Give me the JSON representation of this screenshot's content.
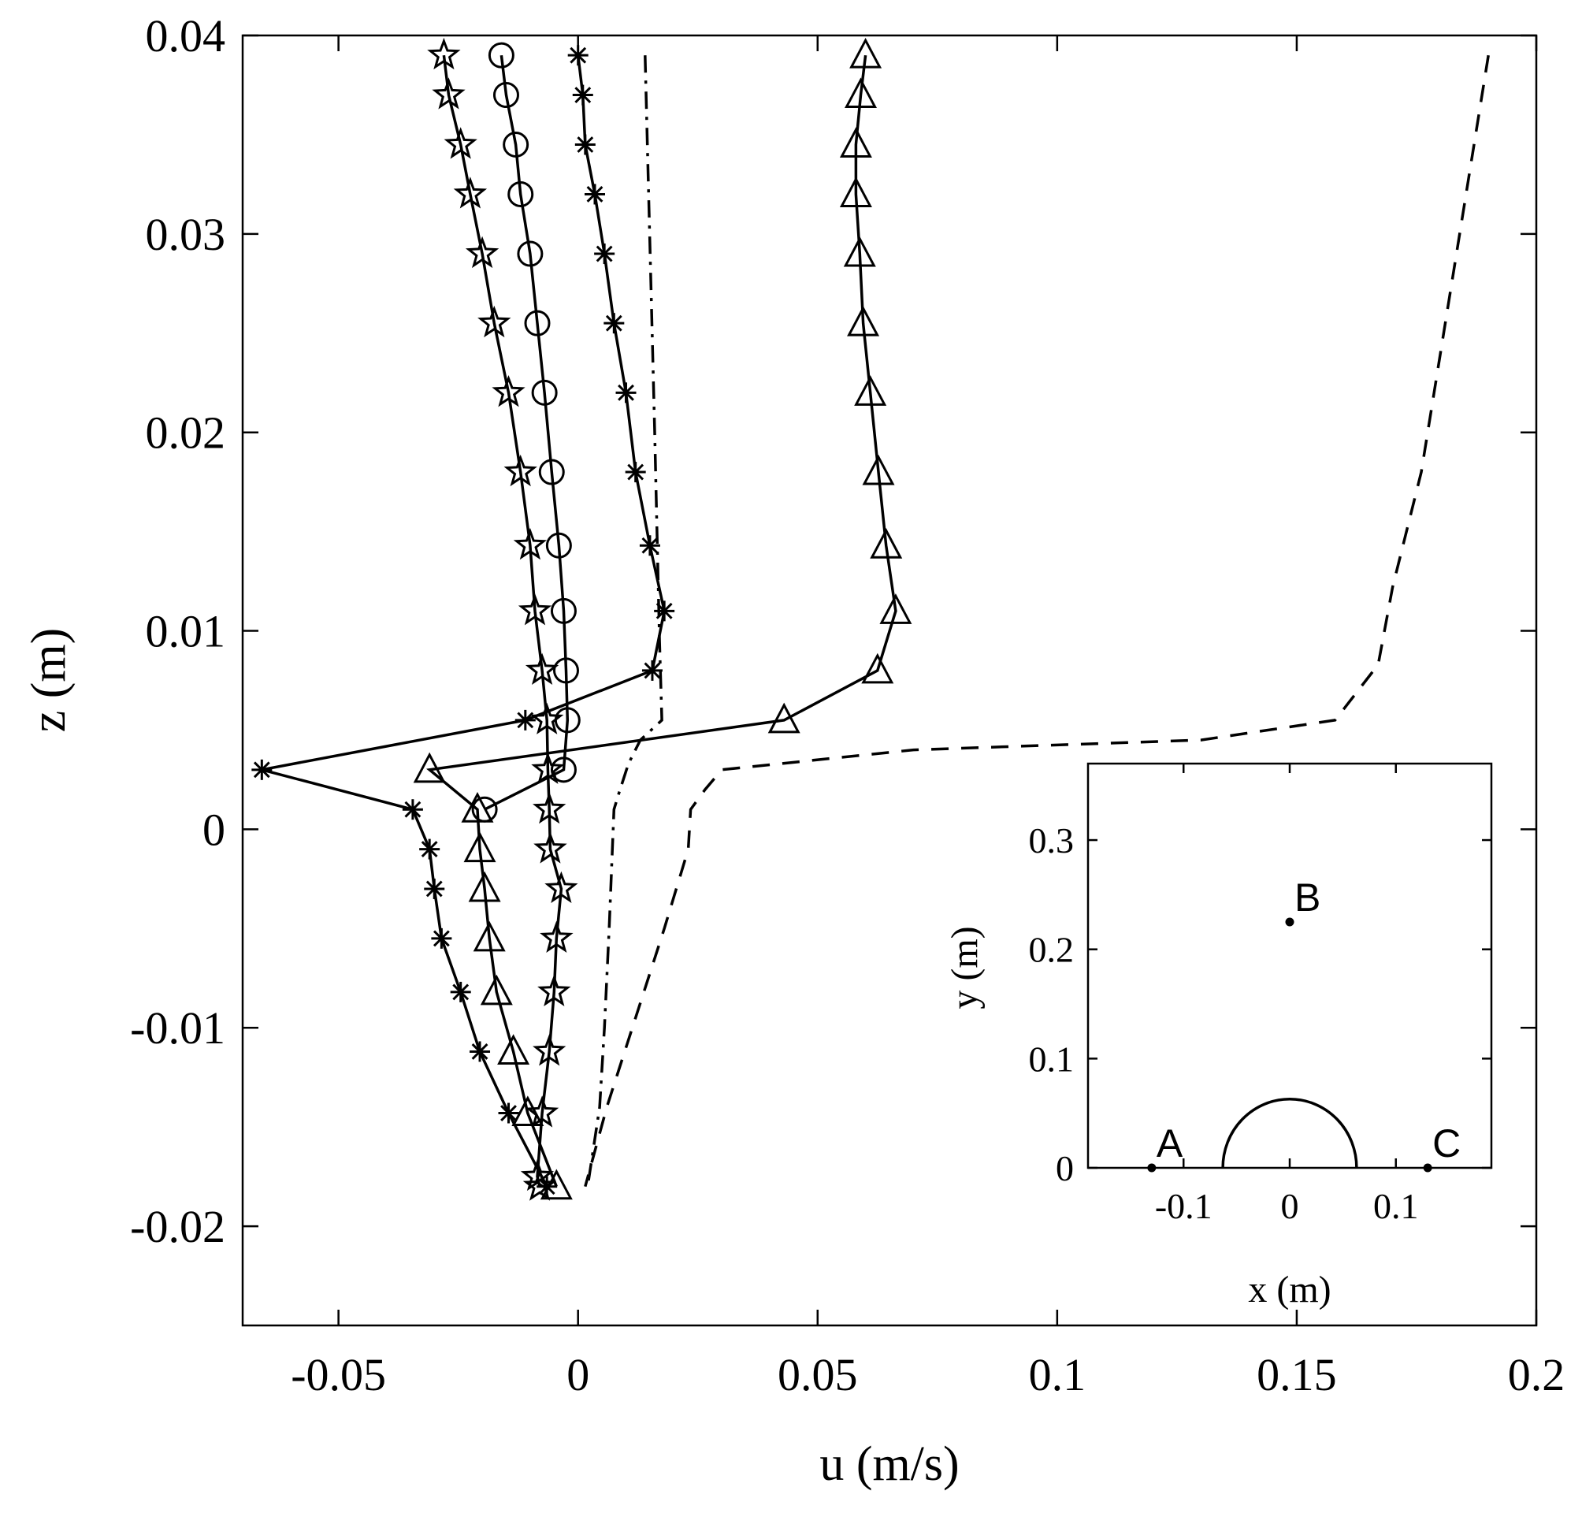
{
  "chart_data": [
    {
      "type": "line",
      "title": "",
      "xlabel": "u (m/s)",
      "ylabel": "z (m)",
      "xlim": [
        -0.07,
        0.2
      ],
      "ylim": [
        -0.025,
        0.04
      ],
      "xticks": [
        -0.05,
        0,
        0.05,
        0.1,
        0.15,
        0.2
      ],
      "yticks": [
        -0.02,
        -0.01,
        0,
        0.01,
        0.02,
        0.03,
        0.04
      ],
      "xtick_labels": [
        "-0.05",
        "0",
        "0.05",
        "0.1",
        "0.15",
        "0.2"
      ],
      "ytick_labels": [
        "-0.02",
        "-0.01",
        "0",
        "0.01",
        "0.02",
        "0.03",
        "0.04"
      ],
      "grid": false,
      "legend": "none",
      "series": [
        {
          "marker": "pentagram",
          "line_style": "solid",
          "points": [
            [
              -0.028,
              0.039
            ],
            [
              -0.027,
              0.037
            ],
            [
              -0.0245,
              0.0345
            ],
            [
              -0.0225,
              0.032
            ],
            [
              -0.02,
              0.029
            ],
            [
              -0.0175,
              0.0255
            ],
            [
              -0.0145,
              0.022
            ],
            [
              -0.012,
              0.018
            ],
            [
              -0.01,
              0.0143
            ],
            [
              -0.009,
              0.011
            ],
            [
              -0.0075,
              0.008
            ],
            [
              -0.0065,
              0.0055
            ],
            [
              -0.0063,
              0.003
            ],
            [
              -0.006,
              0.001
            ],
            [
              -0.0058,
              -0.001
            ],
            [
              -0.0035,
              -0.003
            ],
            [
              -0.0045,
              -0.0055
            ],
            [
              -0.005,
              -0.0082
            ],
            [
              -0.006,
              -0.0112
            ],
            [
              -0.0075,
              -0.0143
            ],
            [
              -0.0085,
              -0.0175
            ],
            [
              -0.008,
              -0.018
            ]
          ]
        },
        {
          "marker": "circle",
          "line_style": "solid",
          "points": [
            [
              -0.016,
              0.039
            ],
            [
              -0.015,
              0.037
            ],
            [
              -0.013,
              0.0345
            ],
            [
              -0.012,
              0.032
            ],
            [
              -0.01,
              0.029
            ],
            [
              -0.0085,
              0.0255
            ],
            [
              -0.007,
              0.022
            ],
            [
              -0.0055,
              0.018
            ],
            [
              -0.004,
              0.0143
            ],
            [
              -0.003,
              0.011
            ],
            [
              -0.0025,
              0.008
            ],
            [
              -0.0022,
              0.0055
            ],
            [
              -0.003,
              0.003
            ],
            [
              -0.0195,
              0.001
            ]
          ]
        },
        {
          "marker": "asterisk",
          "line_style": "solid",
          "points": [
            [
              0,
              0.039
            ],
            [
              0.001,
              0.037
            ],
            [
              0.0015,
              0.0345
            ],
            [
              0.0035,
              0.032
            ],
            [
              0.0055,
              0.029
            ],
            [
              0.0075,
              0.0255
            ],
            [
              0.01,
              0.022
            ],
            [
              0.012,
              0.018
            ],
            [
              0.015,
              0.0143
            ],
            [
              0.018,
              0.011
            ],
            [
              0.0155,
              0.008
            ],
            [
              -0.011,
              0.0055
            ],
            [
              -0.066,
              0.003
            ],
            [
              -0.0345,
              0.001
            ],
            [
              -0.031,
              -0.001
            ],
            [
              -0.03,
              -0.003
            ],
            [
              -0.0285,
              -0.0055
            ],
            [
              -0.0245,
              -0.0082
            ],
            [
              -0.0205,
              -0.0112
            ],
            [
              -0.0145,
              -0.0143
            ],
            [
              -0.0065,
              -0.018
            ]
          ]
        },
        {
          "marker": "triangle",
          "line_style": "solid",
          "points": [
            [
              0.06,
              0.039
            ],
            [
              0.059,
              0.037
            ],
            [
              0.058,
              0.0345
            ],
            [
              0.058,
              0.032
            ],
            [
              0.0588,
              0.029
            ],
            [
              0.0595,
              0.0255
            ],
            [
              0.061,
              0.022
            ],
            [
              0.0627,
              0.018
            ],
            [
              0.0643,
              0.0143
            ],
            [
              0.0663,
              0.011
            ],
            [
              0.0625,
              0.008
            ],
            [
              0.043,
              0.0055
            ],
            [
              -0.031,
              0.003
            ],
            [
              -0.021,
              0.001
            ],
            [
              -0.0205,
              -0.001
            ],
            [
              -0.0195,
              -0.003
            ],
            [
              -0.0185,
              -0.0055
            ],
            [
              -0.017,
              -0.0082
            ],
            [
              -0.0135,
              -0.0112
            ],
            [
              -0.0105,
              -0.0143
            ],
            [
              -0.0045,
              -0.018
            ]
          ]
        },
        {
          "marker": "none",
          "line_style": "dashdot",
          "points": [
            [
              0.014,
              0.039
            ],
            [
              0.016,
              0.02
            ],
            [
              0.017,
              0.0095
            ],
            [
              0.0175,
              0.0055
            ],
            [
              0.013,
              0.0045
            ],
            [
              0.0105,
              0.0033
            ],
            [
              0.0085,
              0.0018
            ],
            [
              0.0075,
              0.001
            ],
            [
              0.0065,
              -0.005
            ],
            [
              0.0055,
              -0.01
            ],
            [
              0.0045,
              -0.014
            ],
            [
              0.002,
              -0.018
            ]
          ]
        },
        {
          "marker": "none",
          "line_style": "dashed",
          "points": [
            [
              0.19,
              0.039
            ],
            [
              0.185,
              0.0315
            ],
            [
              0.176,
              0.018
            ],
            [
              0.17,
              0.0122
            ],
            [
              0.167,
              0.0083
            ],
            [
              0.158,
              0.0055
            ],
            [
              0.13,
              0.0045
            ],
            [
              0.07,
              0.004
            ],
            [
              0.03,
              0.003
            ],
            [
              0.0265,
              0.002
            ],
            [
              0.0235,
              0.001
            ],
            [
              0.023,
              -0.001
            ],
            [
              0.018,
              -0.005
            ],
            [
              0.012,
              -0.0095
            ],
            [
              0.006,
              -0.014
            ],
            [
              0.0015,
              -0.018
            ]
          ]
        }
      ]
    },
    {
      "type": "scatter",
      "title": "",
      "xlabel": "x (m)",
      "ylabel": "y (m)",
      "xlim": [
        -0.19,
        0.19
      ],
      "ylim": [
        0,
        0.37
      ],
      "xticks": [
        -0.1,
        0,
        0.1
      ],
      "yticks": [
        0,
        0.1,
        0.2,
        0.3
      ],
      "xtick_labels": [
        "-0.1",
        "0",
        "0.1"
      ],
      "ytick_labels": [
        "0",
        "0.1",
        "0.2",
        "0.3"
      ],
      "grid": false,
      "legend": "none",
      "points": [
        {
          "label": "A",
          "x": -0.13,
          "y": 0
        },
        {
          "label": "B",
          "x": 0,
          "y": 0.225
        },
        {
          "label": "C",
          "x": 0.13,
          "y": 0
        }
      ],
      "semicircle": {
        "center_x": 0,
        "center_y": 0,
        "radius": 0.063
      }
    }
  ]
}
